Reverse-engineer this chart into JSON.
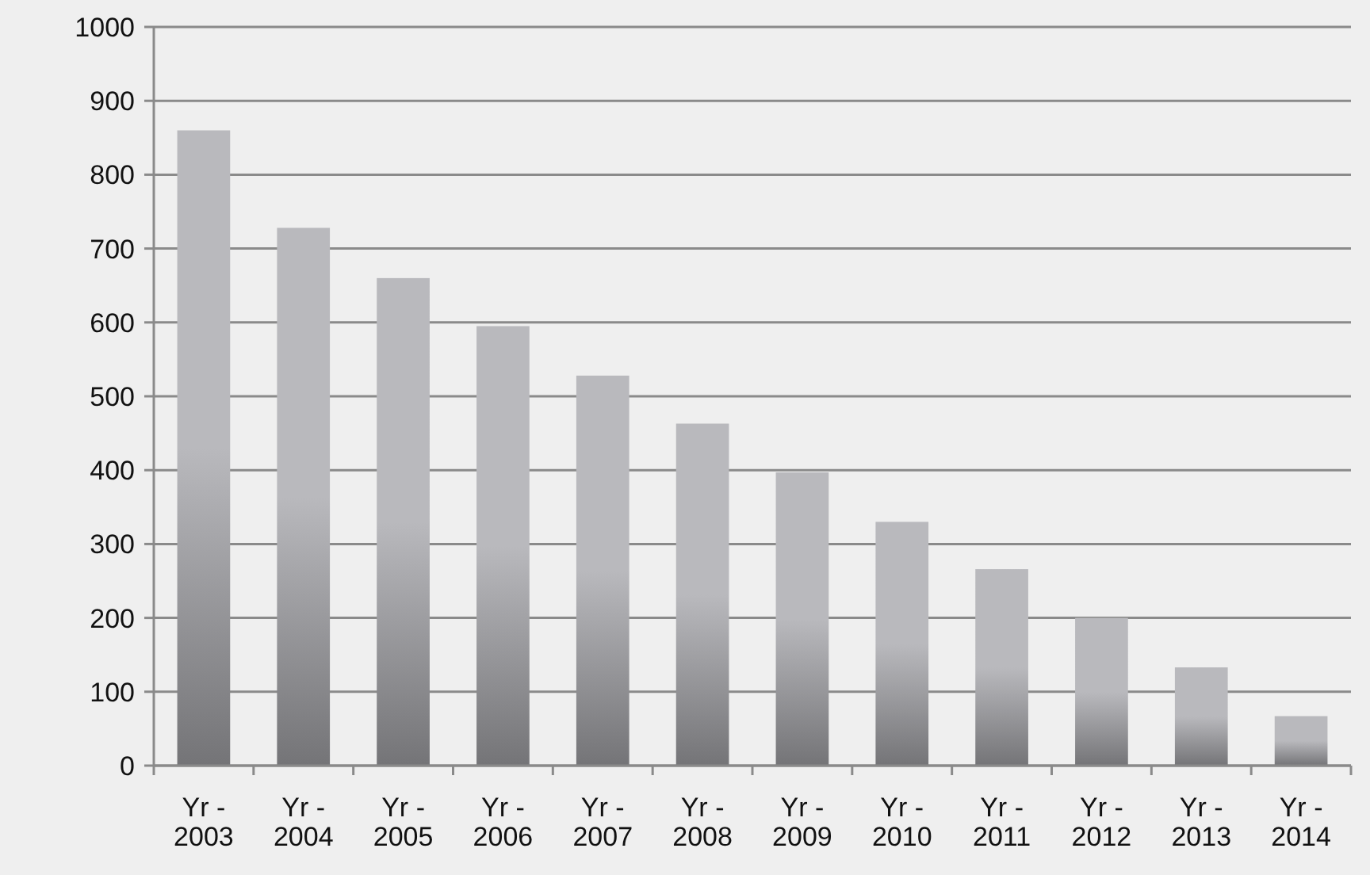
{
  "chart_data": {
    "type": "bar",
    "categories": [
      "Yr - 2003",
      "Yr - 2004",
      "Yr - 2005",
      "Yr - 2006",
      "Yr - 2007",
      "Yr - 2008",
      "Yr - 2009",
      "Yr - 2010",
      "Yr - 2011",
      "Yr - 2012",
      "Yr - 2013",
      "Yr - 2014"
    ],
    "values": [
      860,
      728,
      660,
      595,
      528,
      463,
      397,
      330,
      266,
      200,
      133,
      67
    ],
    "color": "#b9b9bd",
    "ylim": [
      0,
      1000
    ],
    "yticks": [
      0,
      100,
      200,
      300,
      400,
      500,
      600,
      700,
      800,
      900,
      1000
    ],
    "grid": "y"
  }
}
